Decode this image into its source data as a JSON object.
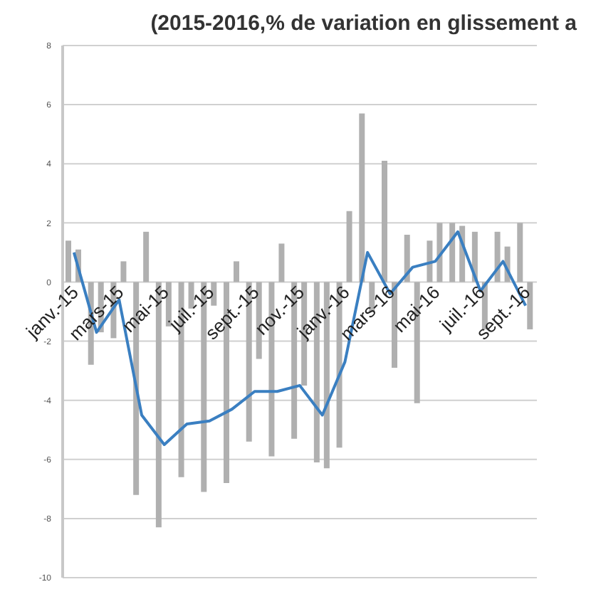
{
  "chart_data": {
    "type": "bar",
    "title": "(2015-2016,% de variation en glissement a",
    "categories": [
      "janv.-15",
      null,
      "mars-15",
      null,
      "mai-15",
      null,
      "juil.-15",
      null,
      "sept.-15",
      null,
      "nov.-15",
      null,
      "janv.-16",
      null,
      "mars-16",
      null,
      "mai-16",
      null,
      "juil.-16",
      null,
      "sept.-16"
    ],
    "series": [
      {
        "color": "#b0b0b0",
        "values": [
          1.4,
          -2.8,
          -1.9,
          -7.2,
          -8.3,
          -6.6,
          -7.1,
          -6.8,
          -5.4,
          -5.9,
          -5.3,
          -6.1,
          -5.6,
          5.7,
          4.1,
          1.6,
          1.4,
          2.0,
          1.7,
          1.7,
          2.0
        ]
      },
      {
        "color": "#b0b0b0",
        "values": [
          1.1,
          -1.7,
          0.7,
          1.7,
          -1.5,
          -0.9,
          -0.8,
          0.7,
          -2.6,
          1.3,
          -3.5,
          -6.3,
          2.4,
          -1.0,
          -2.9,
          -4.1,
          2.0,
          1.9,
          -1.6,
          1.2,
          -1.6
        ]
      },
      {
        "type": "line",
        "color": "#3a7fc1",
        "values": [
          1.0,
          -1.7,
          -0.6,
          -4.5,
          -5.5,
          -4.8,
          -4.7,
          -4.3,
          -3.7,
          -3.7,
          -3.5,
          -4.5,
          -2.7,
          1.0,
          -0.4,
          0.5,
          0.7,
          1.7,
          -0.3,
          0.7,
          -0.8
        ]
      }
    ],
    "ylim": [
      -10,
      8
    ],
    "yticks": [
      -10,
      -8,
      -6,
      -4,
      -2,
      0,
      2,
      4,
      6,
      8
    ],
    "grid": "y",
    "legend": false,
    "marker": "none"
  }
}
